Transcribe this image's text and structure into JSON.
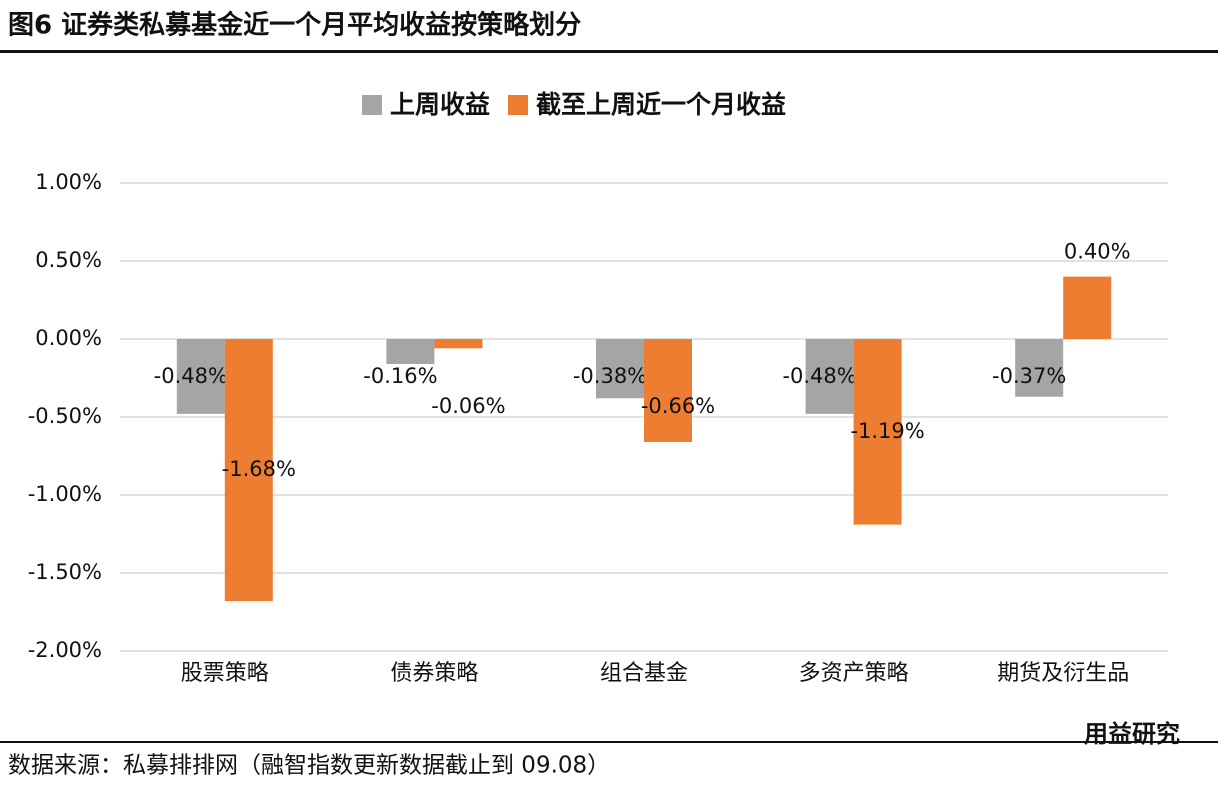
{
  "chart_data": {
    "type": "bar",
    "title": "图6  证券类私募基金近一个月平均收益按策略划分",
    "categories": [
      "股票策略",
      "债券策略",
      "组合基金",
      "多资产策略",
      "期货及衍生品"
    ],
    "series": [
      {
        "name": "上周收益",
        "color": "#a5a5a5",
        "values": [
          -0.48,
          -0.16,
          -0.38,
          -0.48,
          -0.37
        ],
        "value_labels": [
          "-0.48%",
          "-0.16%",
          "-0.38%",
          "-0.48%",
          "-0.37%"
        ]
      },
      {
        "name": "截至上周近一个月收益",
        "color": "#ed7d31",
        "values": [
          -1.68,
          -0.06,
          -0.66,
          -1.19,
          0.4
        ],
        "value_labels": [
          "-1.68%",
          "-0.06%",
          "-0.66%",
          "-1.19%",
          "0.40%"
        ]
      }
    ],
    "ylim": [
      -2,
      1
    ],
    "yticks": [
      {
        "value": -2,
        "label": "-2.00%"
      },
      {
        "value": -1.5,
        "label": "-1.50%"
      },
      {
        "value": -1,
        "label": "-1.00%"
      },
      {
        "value": -0.5,
        "label": "-0.50%"
      },
      {
        "value": 0,
        "label": "0.00%"
      },
      {
        "value": 0.5,
        "label": "0.50%"
      },
      {
        "value": 1,
        "label": "1.00%"
      }
    ],
    "grid": true,
    "legend": "top",
    "source": "数据来源：私募排排网（融智指数更新数据截止到 09.08）",
    "watermark": "用益研究"
  }
}
